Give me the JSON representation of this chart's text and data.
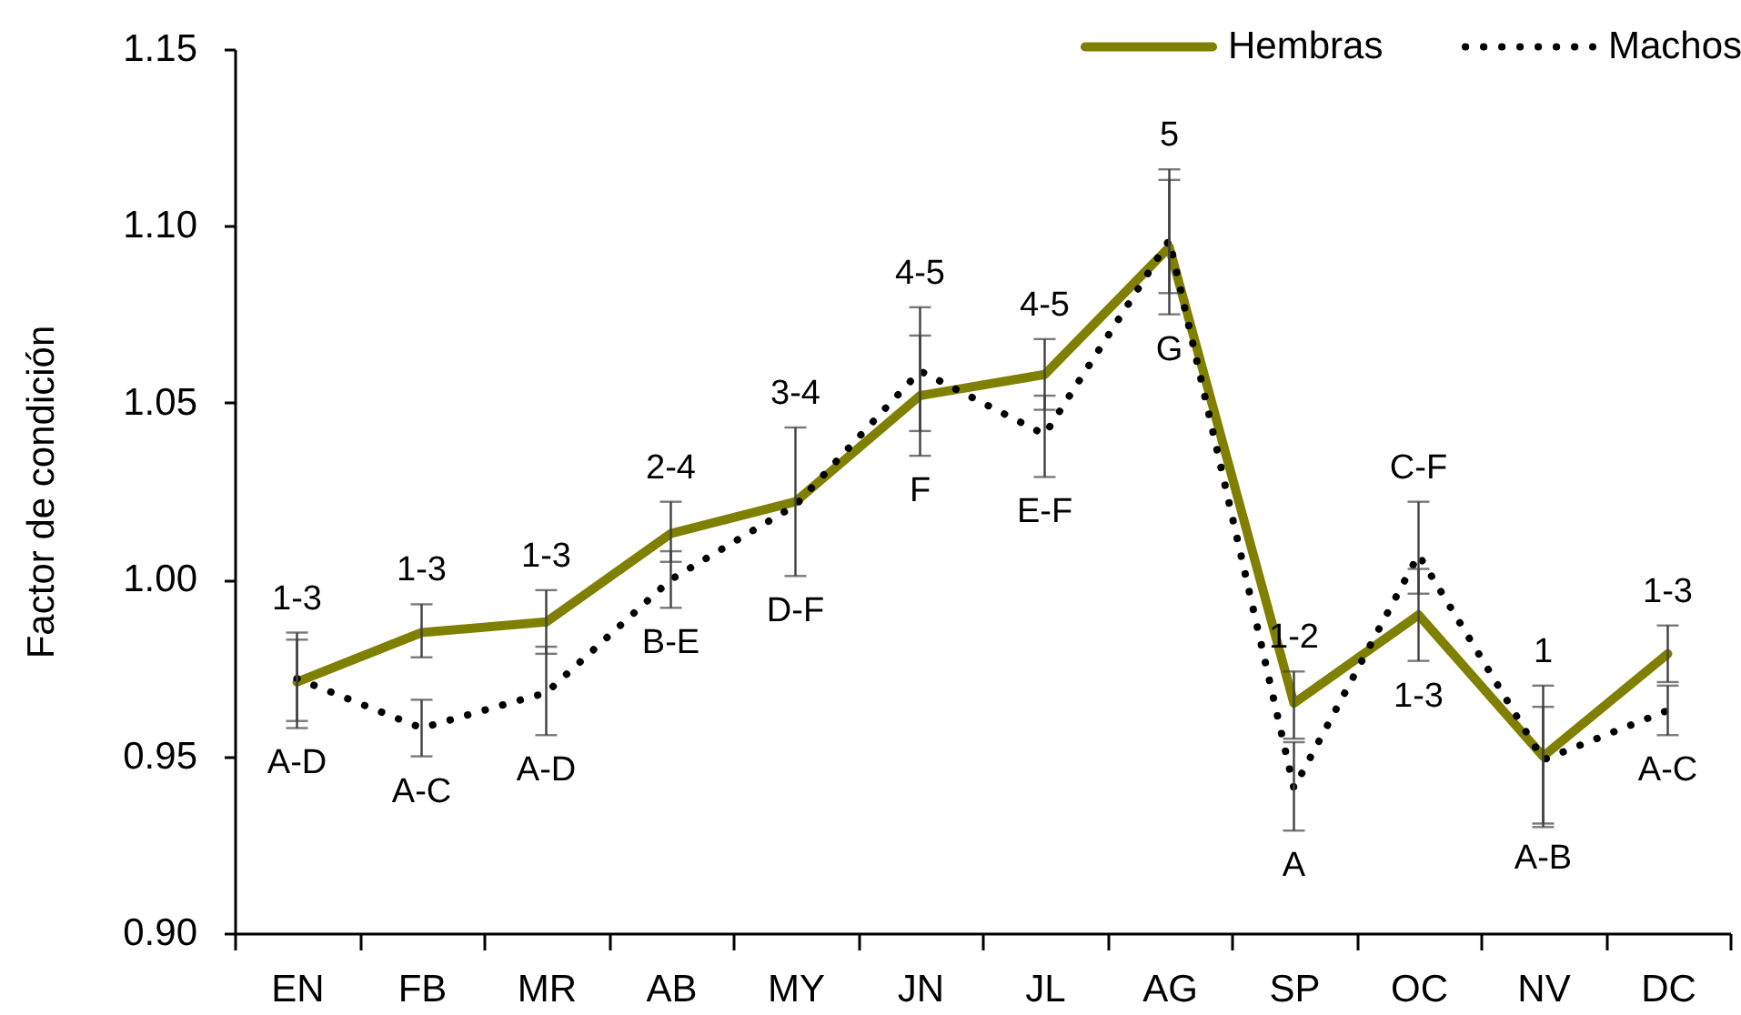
{
  "chart_data": {
    "type": "line",
    "ylabel": "Factor de condición",
    "categories": [
      "EN",
      "FB",
      "MR",
      "AB",
      "MY",
      "JN",
      "JL",
      "AG",
      "SP",
      "OC",
      "NV",
      "DC"
    ],
    "series": [
      {
        "name": "Hembras",
        "color": "#808000",
        "line_style": "solid",
        "values": [
          0.971,
          0.985,
          0.988,
          1.013,
          1.022,
          1.052,
          1.058,
          1.094,
          0.965,
          0.99,
          0.95,
          0.979
        ],
        "errors": [
          [
            0.958,
            0.983
          ],
          [
            0.978,
            0.993
          ],
          [
            0.979,
            0.997
          ],
          [
            1.005,
            1.022
          ],
          [
            1.001,
            1.043
          ],
          [
            1.035,
            1.069
          ],
          [
            1.048,
            1.068
          ],
          [
            1.075,
            1.113
          ],
          [
            0.955,
            0.974
          ],
          [
            0.977,
            1.003
          ],
          [
            0.931,
            0.964
          ],
          [
            0.971,
            0.987
          ]
        ]
      },
      {
        "name": "Machos",
        "color": "#000000",
        "line_style": "dotted",
        "values": [
          0.972,
          0.958,
          0.968,
          1.0,
          1.021,
          1.059,
          1.041,
          1.096,
          0.941,
          1.007,
          0.949,
          0.963
        ],
        "errors": [
          [
            0.96,
            0.985
          ],
          [
            0.95,
            0.966
          ],
          [
            0.956,
            0.981
          ],
          [
            0.992,
            1.008
          ],
          null,
          [
            1.042,
            1.077
          ],
          [
            1.029,
            1.052
          ],
          [
            1.081,
            1.116
          ],
          [
            0.929,
            0.954
          ],
          [
            0.996,
            1.022
          ],
          [
            0.93,
            0.97
          ],
          [
            0.956,
            0.97
          ]
        ]
      }
    ],
    "ylim": [
      0.9,
      1.15
    ],
    "yticks": [
      {
        "value": 0.9,
        "label": "0.90"
      },
      0.95,
      {
        "value": 1,
        "label": "1.00"
      },
      1.05,
      {
        "value": 1.1,
        "label": "1.10"
      },
      1.15
    ],
    "legend": "top right",
    "annotations": [
      {
        "text": "1-3",
        "x": "EN",
        "y": 0.972
      },
      {
        "text": "A-D",
        "x": "EN",
        "y": 0.971
      },
      {
        "text": "1-3",
        "x": "FB",
        "y": 0.985
      },
      {
        "text": "A-C",
        "x": "FB",
        "y": 0.958
      },
      {
        "text": "1-3",
        "x": "MR",
        "y": 0.988
      },
      {
        "text": "A-D",
        "x": "MR",
        "y": 0.968
      },
      {
        "text": "2-4",
        "x": "AB",
        "y": 1.013
      },
      {
        "text": "B-E",
        "x": "AB",
        "y": 1.0
      },
      {
        "text": "3-4",
        "x": "MY",
        "y": 1.022
      },
      {
        "text": "D-F",
        "x": "MY",
        "y": 1.022
      },
      {
        "text": "4-5",
        "x": "JN",
        "y": 1.059
      },
      {
        "text": "F",
        "x": "JN",
        "y": 1.052
      },
      {
        "text": "4-5",
        "x": "JL",
        "y": 1.058
      },
      {
        "text": "E-F",
        "x": "JL",
        "y": 1.041
      },
      {
        "text": "5",
        "x": "AG",
        "y": 1.096
      },
      {
        "text": "G",
        "x": "AG",
        "y": 1.094
      },
      {
        "text": "1-2",
        "x": "SP",
        "y": 0.965
      },
      {
        "text": "A",
        "x": "SP",
        "y": 0.941
      },
      {
        "text": "C-F",
        "x": "OC",
        "y": 1.007
      },
      {
        "text": "1-3",
        "x": "OC",
        "y": 0.99
      },
      {
        "text": "1",
        "x": "NV",
        "y": 0.949
      },
      {
        "text": "A-B",
        "x": "NV",
        "y": 0.95
      },
      {
        "text": "1-3",
        "x": "DC",
        "y": 0.979
      },
      {
        "text": "A-C",
        "x": "DC",
        "y": 0.963
      }
    ]
  }
}
